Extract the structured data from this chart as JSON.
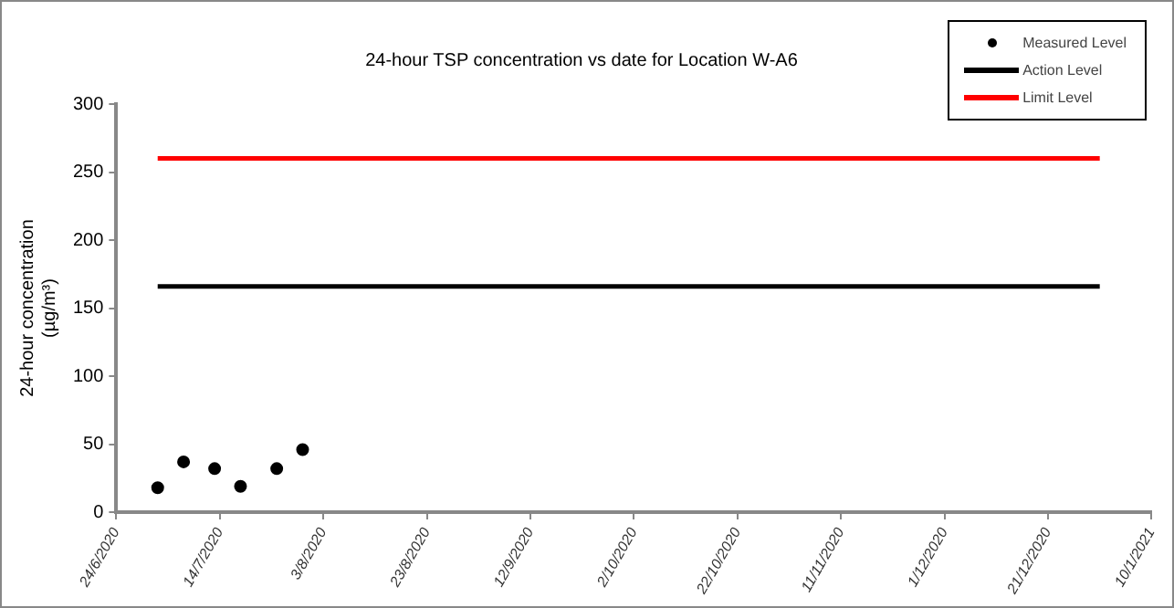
{
  "chart_data": {
    "type": "scatter",
    "title": "24-hour TSP concentration vs date for Location W-A6",
    "ylabel": "24-hour concentration (µg/m³)",
    "series": [
      {
        "name": "Measured Level",
        "marker": "circle",
        "color": "#000000",
        "x": [
          "2020-07-02",
          "2020-07-07",
          "2020-07-13",
          "2020-07-18",
          "2020-07-25",
          "2020-07-30"
        ],
        "values": [
          18,
          37,
          32,
          19,
          32,
          46
        ]
      },
      {
        "name": "Action Level",
        "type": "line",
        "marker": "none",
        "color": "#000000",
        "x": [
          "2020-07-02",
          "2020-12-31"
        ],
        "values": [
          166,
          166
        ]
      },
      {
        "name": "Limit Level",
        "type": "line",
        "marker": "none",
        "color": "#ff0000",
        "x": [
          "2020-07-02",
          "2020-12-31"
        ],
        "values": [
          260,
          260
        ]
      }
    ],
    "xlim": [
      "2020-06-24",
      "2021-01-10"
    ],
    "xticks": [
      {
        "value": "2020-06-24",
        "label": "24/6/2020"
      },
      {
        "value": "2020-07-14",
        "label": "14/7/2020"
      },
      {
        "value": "2020-08-03",
        "label": "3/8/2020"
      },
      {
        "value": "2020-08-23",
        "label": "23/8/2020"
      },
      {
        "value": "2020-09-12",
        "label": "12/9/2020"
      },
      {
        "value": "2020-10-02",
        "label": "2/10/2020"
      },
      {
        "value": "2020-10-22",
        "label": "22/10/2020"
      },
      {
        "value": "2020-11-11",
        "label": "11/11/2020"
      },
      {
        "value": "2020-12-01",
        "label": "1/12/2020"
      },
      {
        "value": "2020-12-21",
        "label": "21/12/2020"
      },
      {
        "value": "2021-01-10",
        "label": "10/1/2021"
      }
    ],
    "ylim": [
      0,
      300
    ],
    "yticks": [
      0,
      50,
      100,
      150,
      200,
      250,
      300
    ],
    "grid": false,
    "legend": "top right"
  }
}
